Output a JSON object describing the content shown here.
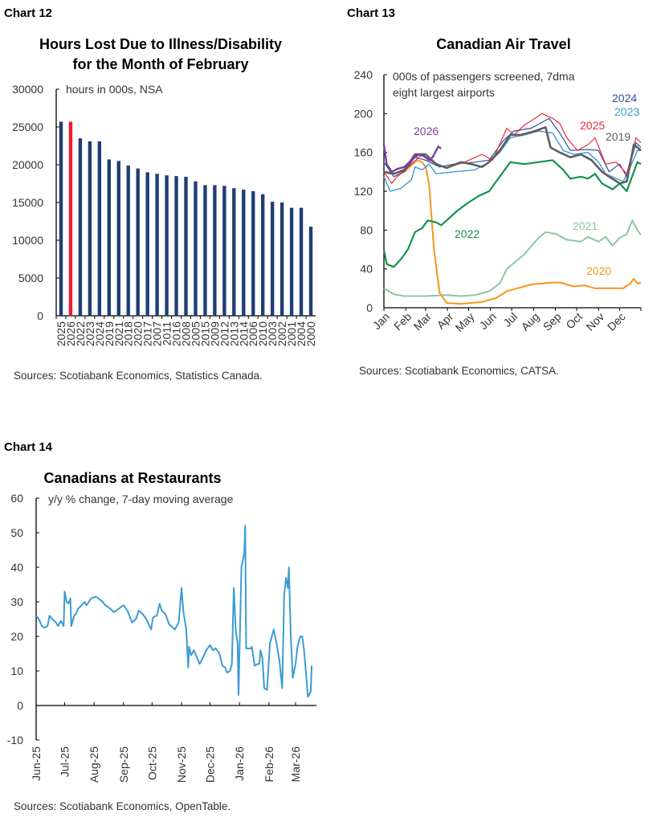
{
  "chart_data": [
    {
      "id": "chart12",
      "label": "Chart 12",
      "type": "bar",
      "title": [
        "Hours Lost Due to Illness/Disability",
        "for the Month of February"
      ],
      "note": "hours in 000s, NSA",
      "source": "Sources: Scotiabank Economics, Statistics Canada.",
      "ylim": [
        0,
        30000
      ],
      "yticks": [
        0,
        5000,
        10000,
        15000,
        20000,
        25000,
        30000
      ],
      "categories": [
        "2025",
        "2026",
        "2022",
        "2023",
        "2024",
        "2019",
        "2021",
        "2018",
        "2020",
        "2017",
        "2007",
        "2011",
        "2016",
        "2008",
        "2005",
        "2015",
        "2009",
        "2012",
        "2013",
        "2014",
        "2006",
        "2010",
        "2003",
        "2002",
        "2001",
        "2004",
        "2000"
      ],
      "values": [
        25700,
        25700,
        23500,
        23100,
        23100,
        20700,
        20500,
        19900,
        19500,
        19000,
        18800,
        18600,
        18500,
        18400,
        17800,
        17300,
        17300,
        17200,
        16900,
        16700,
        16500,
        16100,
        15100,
        15000,
        14300,
        14300,
        11800
      ],
      "colors": {
        "default": "#1f3f74",
        "highlight": "#ee1c2e"
      },
      "highlight_category": "2026",
      "grid": false
    },
    {
      "id": "chart13",
      "label": "Chart 13",
      "type": "line",
      "title": "Canadian Air Travel",
      "note": [
        "000s of passengers screened, 7dma",
        "eight largest airports"
      ],
      "source": "Sources: Scotiabank Economics, CATSA.",
      "ylim": [
        0,
        240
      ],
      "yticks": [
        0,
        40,
        80,
        120,
        160,
        200,
        240
      ],
      "xlabel_unit": "day of year",
      "xticks": [
        "Jan",
        "Feb",
        "Mar",
        "Apr",
        "May",
        "Jun",
        "Jul",
        "Aug",
        "Sep",
        "Oct",
        "Nov",
        "Dec"
      ],
      "grid": false,
      "series": [
        {
          "name": "2021",
          "color": "#8cc6a1",
          "width": 2,
          "x": [
            1,
            15,
            30,
            60,
            90,
            110,
            130,
            150,
            165,
            175,
            200,
            220,
            230,
            245,
            260,
            280,
            290,
            305,
            315,
            325,
            335,
            345,
            350,
            353,
            360,
            365
          ],
          "y": [
            20,
            14,
            12,
            12,
            13,
            12,
            13,
            17,
            25,
            40,
            55,
            72,
            78,
            76,
            70,
            68,
            73,
            68,
            73,
            64,
            72,
            76,
            85,
            90,
            80,
            75
          ]
        },
        {
          "name": "2020",
          "color": "#f7941d",
          "width": 2,
          "x": [
            1,
            10,
            30,
            48,
            55,
            60,
            65,
            72,
            80,
            90,
            110,
            140,
            160,
            175,
            190,
            210,
            240,
            250,
            270,
            285,
            300,
            320,
            340,
            350,
            355,
            360,
            365
          ],
          "y": [
            140,
            138,
            140,
            152,
            150,
            145,
            127,
            60,
            15,
            5,
            4,
            6,
            10,
            17,
            20,
            24,
            26,
            26,
            22,
            23,
            20,
            20,
            20,
            25,
            30,
            25,
            26
          ]
        },
        {
          "name": "2022",
          "color": "#13924b",
          "width": 2.2,
          "x": [
            1,
            5,
            15,
            25,
            35,
            45,
            55,
            63,
            75,
            82,
            90,
            105,
            120,
            135,
            150,
            165,
            180,
            200,
            220,
            240,
            255,
            265,
            280,
            290,
            300,
            310,
            325,
            335,
            345,
            355,
            360,
            365
          ],
          "y": [
            60,
            45,
            42,
            50,
            60,
            78,
            82,
            90,
            88,
            85,
            90,
            100,
            108,
            115,
            120,
            135,
            150,
            148,
            150,
            152,
            142,
            133,
            135,
            133,
            138,
            128,
            122,
            128,
            120,
            140,
            150,
            148
          ]
        },
        {
          "name": "2023",
          "color": "#3c9bd6",
          "width": 1.4,
          "x": [
            1,
            10,
            25,
            40,
            45,
            55,
            65,
            75,
            100,
            130,
            150,
            165,
            180,
            200,
            220,
            240,
            255,
            270,
            290,
            305,
            315,
            330,
            340,
            350,
            360,
            365
          ],
          "y": [
            135,
            120,
            123,
            132,
            145,
            142,
            148,
            138,
            140,
            142,
            150,
            160,
            175,
            178,
            182,
            180,
            162,
            158,
            160,
            150,
            138,
            133,
            130,
            145,
            162,
            162
          ]
        },
        {
          "name": "2024",
          "color": "#2b4e9c",
          "width": 1.2,
          "x": [
            1,
            15,
            30,
            45,
            60,
            80,
            100,
            130,
            150,
            170,
            185,
            210,
            235,
            250,
            265,
            290,
            305,
            320,
            335,
            345,
            358,
            365
          ],
          "y": [
            150,
            135,
            140,
            155,
            152,
            145,
            148,
            150,
            152,
            172,
            182,
            185,
            195,
            180,
            162,
            163,
            162,
            140,
            148,
            135,
            170,
            165
          ]
        },
        {
          "name": "2025",
          "color": "#ec2a3b",
          "width": 1.2,
          "x": [
            1,
            12,
            20,
            40,
            55,
            70,
            90,
            115,
            140,
            155,
            175,
            185,
            200,
            215,
            225,
            240,
            250,
            260,
            275,
            290,
            300,
            315,
            330,
            345,
            358,
            365
          ],
          "y": [
            140,
            128,
            135,
            148,
            158,
            150,
            144,
            150,
            158,
            152,
            185,
            178,
            188,
            195,
            200,
            195,
            190,
            175,
            162,
            168,
            175,
            148,
            150,
            138,
            175,
            170
          ]
        },
        {
          "name": "2019",
          "color": "#5f5f5f",
          "width": 2.6,
          "x": [
            1,
            15,
            30,
            45,
            60,
            75,
            90,
            110,
            125,
            140,
            150,
            165,
            180,
            195,
            215,
            230,
            237,
            250,
            265,
            280,
            295,
            310,
            320,
            335,
            345,
            355,
            365
          ],
          "y": [
            140,
            138,
            142,
            158,
            158,
            148,
            144,
            150,
            148,
            145,
            150,
            162,
            178,
            178,
            182,
            186,
            165,
            160,
            155,
            158,
            152,
            140,
            135,
            128,
            130,
            168,
            162
          ]
        },
        {
          "name": "2026",
          "color": "#7b3fa3",
          "width": 2.4,
          "x": [
            1,
            5,
            12,
            20,
            30,
            40,
            50,
            58,
            65,
            70,
            75,
            78,
            82
          ],
          "y": [
            168,
            148,
            140,
            143,
            145,
            152,
            158,
            156,
            152,
            155,
            162,
            166,
            164
          ]
        }
      ]
    },
    {
      "id": "chart14",
      "label": "Chart 14",
      "type": "line",
      "title": "Canadians at Restaurants",
      "note": "y/y % change, 7-day moving average",
      "source": "Sources: Scotiabank Economics, OpenTable.",
      "ylim": [
        -10,
        60
      ],
      "yticks": [
        -10,
        0,
        10,
        20,
        30,
        40,
        50,
        60
      ],
      "xticks": [
        {
          "date": "2025-06-01",
          "label": "Jun-25"
        },
        {
          "date": "2025-07-01",
          "label": "Jul-25"
        },
        {
          "date": "2025-08-01",
          "label": "Aug-25"
        },
        {
          "date": "2025-09-01",
          "label": "Sep-25"
        },
        {
          "date": "2025-10-01",
          "label": "Oct-25"
        },
        {
          "date": "2025-11-01",
          "label": "Nov-25"
        },
        {
          "date": "2025-12-01",
          "label": "Dec-25"
        },
        {
          "date": "2026-01-01",
          "label": "Jan-26"
        },
        {
          "date": "2026-02-01",
          "label": "Feb-26"
        },
        {
          "date": "2026-03-01",
          "label": "Mar-26"
        }
      ],
      "xlim": [
        "2025-06-01",
        "2026-03-23"
      ],
      "grid": false,
      "series": [
        {
          "color": "#3d9bd2",
          "x": [
            "2025-06-01",
            "2025-06-04",
            "2025-06-07",
            "2025-06-10",
            "2025-06-13",
            "2025-06-15",
            "2025-06-18",
            "2025-06-22",
            "2025-06-24",
            "2025-06-27",
            "2025-06-30",
            "2025-07-01",
            "2025-07-03",
            "2025-07-05",
            "2025-07-07",
            "2025-07-08",
            "2025-07-11",
            "2025-07-13",
            "2025-07-15",
            "2025-07-19",
            "2025-07-22",
            "2025-07-24",
            "2025-07-29",
            "2025-08-03",
            "2025-08-08",
            "2025-08-13",
            "2025-08-18",
            "2025-08-22",
            "2025-08-27",
            "2025-09-01",
            "2025-09-05",
            "2025-09-10",
            "2025-09-14",
            "2025-09-17",
            "2025-09-21",
            "2025-09-25",
            "2025-09-30",
            "2025-10-02",
            "2025-10-06",
            "2025-10-09",
            "2025-10-11",
            "2025-10-15",
            "2025-10-19",
            "2025-10-25",
            "2025-10-29",
            "2025-11-01",
            "2025-11-03",
            "2025-11-06",
            "2025-11-08",
            "2025-11-09",
            "2025-11-11",
            "2025-11-14",
            "2025-11-17",
            "2025-11-20",
            "2025-11-22",
            "2025-11-27",
            "2025-12-01",
            "2025-12-04",
            "2025-12-07",
            "2025-12-11",
            "2025-12-14",
            "2025-12-17",
            "2025-12-19",
            "2025-12-22",
            "2025-12-24",
            "2025-12-26",
            "2025-12-28",
            "2025-12-30",
            "2025-12-31",
            "2026-01-03",
            "2026-01-06",
            "2026-01-07",
            "2026-01-08",
            "2026-01-13",
            "2026-01-14",
            "2026-01-17",
            "2026-01-20",
            "2026-01-22",
            "2026-01-23",
            "2026-01-25",
            "2026-01-27",
            "2026-01-30",
            "2026-02-02",
            "2026-02-06",
            "2026-02-09",
            "2026-02-12",
            "2026-02-15",
            "2026-02-17",
            "2026-02-19",
            "2026-02-21",
            "2026-02-22",
            "2026-02-24",
            "2026-02-26",
            "2026-03-01",
            "2026-03-03",
            "2026-03-06",
            "2026-03-08",
            "2026-03-10",
            "2026-03-13",
            "2026-03-14",
            "2026-03-17",
            "2026-03-18"
          ],
          "y": [
            26,
            25,
            23,
            22.5,
            23,
            26,
            25,
            24,
            23,
            24.5,
            23,
            33,
            30,
            29.5,
            31,
            23,
            26,
            26.5,
            28,
            29,
            30,
            29,
            31,
            31.5,
            30.5,
            29,
            28,
            27,
            28,
            29,
            27.5,
            24,
            25,
            27.5,
            26.5,
            25,
            22,
            25.5,
            26,
            29.5,
            27.5,
            26.5,
            23.5,
            22,
            24,
            34,
            27,
            22,
            11,
            17,
            14.5,
            16,
            14,
            12,
            13,
            16,
            17.5,
            16,
            16.5,
            15,
            11.5,
            11,
            9.5,
            10,
            12,
            34,
            22,
            18,
            3,
            40,
            44,
            52,
            16.5,
            16.5,
            17,
            11.5,
            12,
            12,
            16,
            14,
            5,
            4.5,
            18,
            22,
            18,
            13,
            5,
            32,
            37,
            34,
            40,
            20,
            8,
            12,
            17,
            20,
            20,
            16,
            6,
            2.5,
            4,
            11.5
          ]
        }
      ]
    }
  ]
}
